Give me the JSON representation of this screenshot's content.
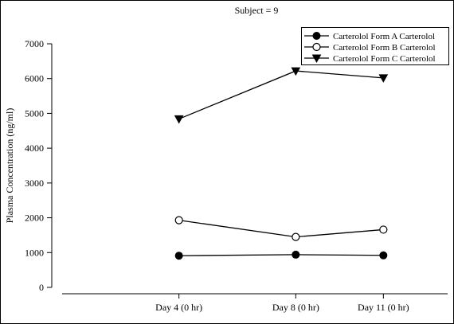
{
  "chart_data": {
    "type": "line",
    "title": "Subject = 9",
    "xlabel": "",
    "ylabel": "Plasma Concentration (ng/ml)",
    "categories": [
      "Day 4 (0 hr)",
      "Day 8 (0 hr)",
      "Day 11 (0 hr)"
    ],
    "x_days": [
      4,
      8,
      11
    ],
    "xlim": [
      0,
      13.2
    ],
    "ylim": [
      0,
      7000
    ],
    "yticks": [
      0,
      1000,
      2000,
      3000,
      4000,
      5000,
      6000,
      7000
    ],
    "grid": false,
    "legend_position": "top-right",
    "series": [
      {
        "name": "Carterolol Form A  Carterolol",
        "marker": "filled-circle",
        "values": [
          910,
          940,
          920
        ]
      },
      {
        "name": "Carterolol Form B  Carterolol",
        "marker": "open-circle",
        "values": [
          1930,
          1450,
          1660
        ]
      },
      {
        "name": "Carterolol Form C  Carterolol",
        "marker": "filled-triangle-down",
        "values": [
          4840,
          6220,
          6020
        ]
      }
    ]
  }
}
